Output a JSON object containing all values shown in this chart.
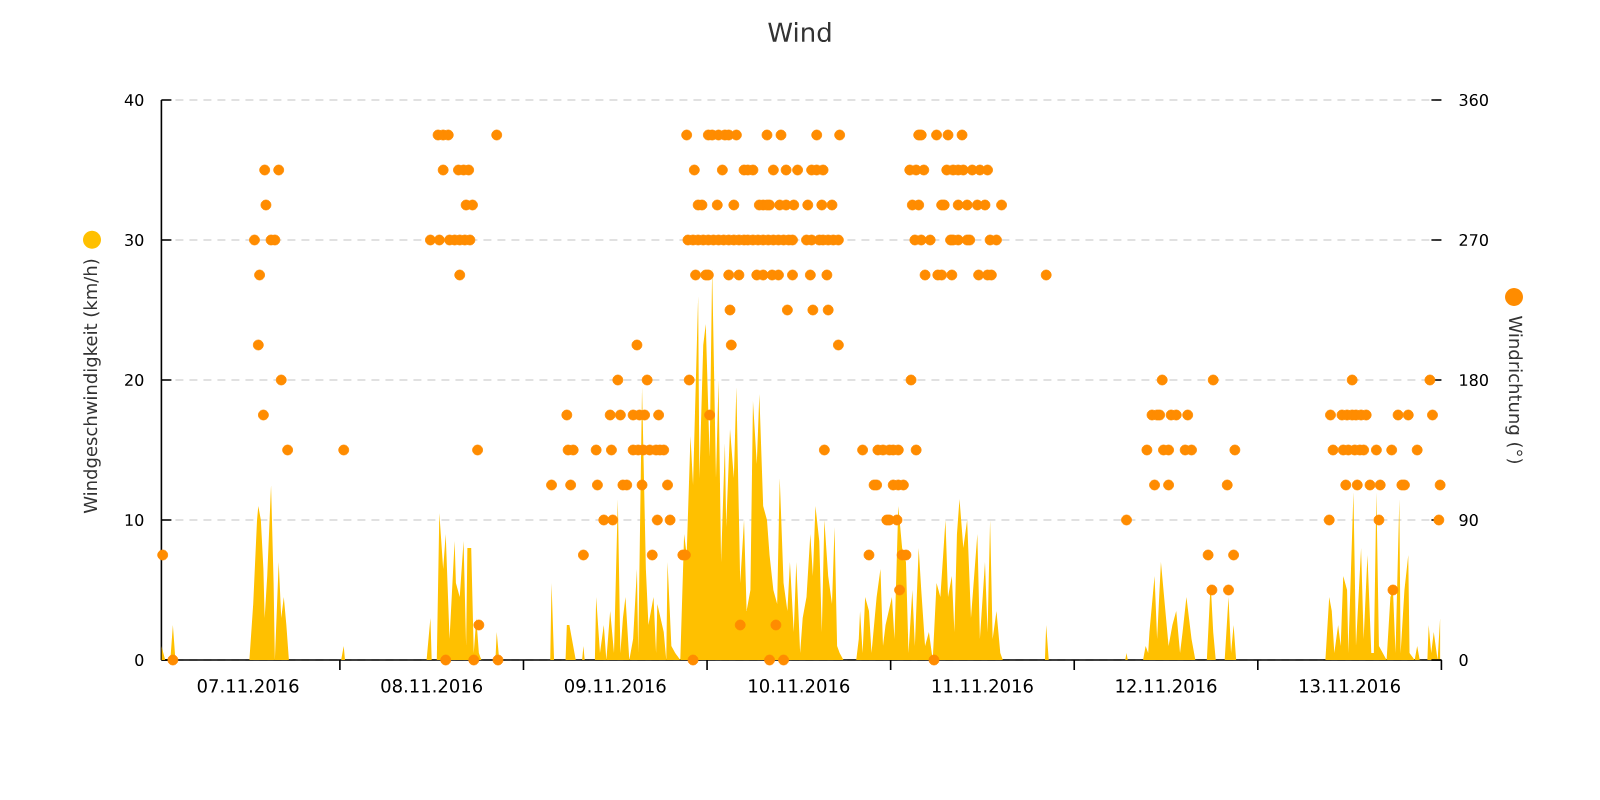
{
  "chart_data": {
    "type": "area",
    "title": "Wind",
    "ylabel": "Windgeschwindigkeit (km/h)",
    "y2label": "Windrichtung (°)",
    "xlim": [
      "2016-11-07T00:40",
      "2016-11-14T00:00"
    ],
    "xticks": [
      {
        "value": "2016-11-07T12:00",
        "label": "07.11.2016"
      },
      {
        "value": "2016-11-08T12:00",
        "label": "08.11.2016"
      },
      {
        "value": "2016-11-09T12:00",
        "label": "09.11.2016"
      },
      {
        "value": "2016-11-10T12:00",
        "label": "10.11.2016"
      },
      {
        "value": "2016-11-11T12:00",
        "label": "11.11.2016"
      },
      {
        "value": "2016-11-12T12:00",
        "label": "12.11.2016"
      },
      {
        "value": "2016-11-13T12:00",
        "label": "13.11.2016"
      },
      {
        "value": "2016-11-08T00:00",
        "label": null
      },
      {
        "value": "2016-11-09T00:00",
        "label": null
      },
      {
        "value": "2016-11-10T00:00",
        "label": null
      },
      {
        "value": "2016-11-11T00:00",
        "label": null
      },
      {
        "value": "2016-11-12T00:00",
        "label": null
      },
      {
        "value": "2016-11-13T00:00",
        "label": null
      },
      {
        "value": "2016-11-14T00:00",
        "label": null
      }
    ],
    "ylim": [
      0,
      40
    ],
    "yticks": [
      0,
      10,
      20,
      30,
      40
    ],
    "y2lim": [
      0,
      360
    ],
    "y2ticks": [
      0,
      90,
      180,
      270,
      360
    ],
    "grid": "y",
    "series": [
      {
        "color": "#ffc000",
        "x": [
          "2016-11-07T00:40",
          "2016-11-07T01:10",
          "2016-11-07T01:50",
          "2016-11-07T02:10",
          "2016-11-07T02:30",
          "2016-11-07T12:10",
          "2016-11-07T12:40",
          "2016-11-07T13:10",
          "2016-11-07T13:20",
          "2016-11-07T13:40",
          "2016-11-07T14:00",
          "2016-11-07T14:10",
          "2016-11-07T14:30",
          "2016-11-07T15:00",
          "2016-11-07T15:20",
          "2016-11-07T15:30",
          "2016-11-07T16:00",
          "2016-11-07T16:20",
          "2016-11-07T16:40",
          "2016-11-07T17:00",
          "2016-11-07T17:20",
          "2016-11-08T00:10",
          "2016-11-08T00:30",
          "2016-11-08T00:40",
          "2016-11-08T11:20",
          "2016-11-08T11:50",
          "2016-11-08T12:00",
          "2016-11-08T12:40",
          "2016-11-08T13:00",
          "2016-11-08T13:30",
          "2016-11-08T13:50",
          "2016-11-08T14:20",
          "2016-11-08T15:00",
          "2016-11-08T15:10",
          "2016-11-08T15:40",
          "2016-11-08T16:10",
          "2016-11-08T16:30",
          "2016-11-08T16:40",
          "2016-11-08T17:10",
          "2016-11-08T17:30",
          "2016-11-08T17:50",
          "2016-11-08T18:10",
          "2016-11-08T18:30",
          "2016-11-08T20:20",
          "2016-11-08T20:30",
          "2016-11-08T20:50",
          "2016-11-09T03:30",
          "2016-11-09T03:40",
          "2016-11-09T04:00",
          "2016-11-09T05:30",
          "2016-11-09T05:40",
          "2016-11-09T06:00",
          "2016-11-09T06:30",
          "2016-11-09T06:50",
          "2016-11-09T07:40",
          "2016-11-09T07:50",
          "2016-11-09T08:00",
          "2016-11-09T09:20",
          "2016-11-09T09:30",
          "2016-11-09T10:00",
          "2016-11-09T10:30",
          "2016-11-09T10:50",
          "2016-11-09T11:20",
          "2016-11-09T11:50",
          "2016-11-09T12:20",
          "2016-11-09T12:40",
          "2016-11-09T13:00",
          "2016-11-09T13:20",
          "2016-11-09T13:50",
          "2016-11-09T14:20",
          "2016-11-09T14:50",
          "2016-11-09T15:00",
          "2016-11-09T15:30",
          "2016-11-09T16:00",
          "2016-11-09T16:20",
          "2016-11-09T17:00",
          "2016-11-09T17:20",
          "2016-11-09T17:30",
          "2016-11-09T18:20",
          "2016-11-09T18:40",
          "2016-11-09T18:50",
          "2016-11-09T19:20",
          "2016-11-09T19:50",
          "2016-11-09T20:30",
          "2016-11-09T21:00",
          "2016-11-09T21:20",
          "2016-11-09T21:50",
          "2016-11-09T22:10",
          "2016-11-09T22:50",
          "2016-11-09T23:00",
          "2016-11-09T23:30",
          "2016-11-09T23:50",
          "2016-11-10T00:20",
          "2016-11-10T00:40",
          "2016-11-10T01:10",
          "2016-11-10T01:30",
          "2016-11-10T01:50",
          "2016-11-10T02:20",
          "2016-11-10T02:30",
          "2016-11-10T03:00",
          "2016-11-10T03:30",
          "2016-11-10T03:50",
          "2016-11-10T04:20",
          "2016-11-10T04:50",
          "2016-11-10T05:10",
          "2016-11-10T05:40",
          "2016-11-10T06:00",
          "2016-11-10T06:30",
          "2016-11-10T06:50",
          "2016-11-10T07:20",
          "2016-11-10T07:50",
          "2016-11-10T08:10",
          "2016-11-10T08:40",
          "2016-11-10T09:10",
          "2016-11-10T09:30",
          "2016-11-10T10:00",
          "2016-11-10T10:30",
          "2016-11-10T10:50",
          "2016-11-10T11:20",
          "2016-11-10T11:40",
          "2016-11-10T12:10",
          "2016-11-10T12:30",
          "2016-11-10T13:00",
          "2016-11-10T13:30",
          "2016-11-10T13:50",
          "2016-11-10T14:10",
          "2016-11-10T14:40",
          "2016-11-10T15:00",
          "2016-11-10T15:20",
          "2016-11-10T15:50",
          "2016-11-10T16:20",
          "2016-11-10T16:40",
          "2016-11-10T17:00",
          "2016-11-10T17:20",
          "2016-11-10T17:50",
          "2016-11-10T19:30",
          "2016-11-10T19:50",
          "2016-11-10T20:00",
          "2016-11-10T20:20",
          "2016-11-10T20:40",
          "2016-11-10T21:10",
          "2016-11-10T21:30",
          "2016-11-10T22:10",
          "2016-11-10T22:40",
          "2016-11-10T23:00",
          "2016-11-10T23:20",
          "2016-11-11T00:10",
          "2016-11-11T00:30",
          "2016-11-11T01:00",
          "2016-11-11T01:30",
          "2016-11-11T02:00",
          "2016-11-11T02:20",
          "2016-11-11T02:50",
          "2016-11-11T03:10",
          "2016-11-11T03:40",
          "2016-11-11T04:00",
          "2016-11-11T04:30",
          "2016-11-11T05:00",
          "2016-11-11T05:30",
          "2016-11-11T06:00",
          "2016-11-11T06:30",
          "2016-11-11T07:10",
          "2016-11-11T07:30",
          "2016-11-11T08:00",
          "2016-11-11T08:20",
          "2016-11-11T08:40",
          "2016-11-11T09:00",
          "2016-11-11T09:30",
          "2016-11-11T10:00",
          "2016-11-11T10:30",
          "2016-11-11T11:20",
          "2016-11-11T11:40",
          "2016-11-11T12:20",
          "2016-11-11T12:40",
          "2016-11-11T13:00",
          "2016-11-11T13:20",
          "2016-11-11T13:50",
          "2016-11-11T14:20",
          "2016-11-11T14:40",
          "2016-11-11T20:10",
          "2016-11-11T20:20",
          "2016-11-11T20:40",
          "2016-11-12T06:40",
          "2016-11-12T06:50",
          "2016-11-12T07:00",
          "2016-11-12T09:00",
          "2016-11-12T09:20",
          "2016-11-12T09:40",
          "2016-11-12T09:50",
          "2016-11-12T10:30",
          "2016-11-12T10:50",
          "2016-11-12T11:20",
          "2016-11-12T11:50",
          "2016-11-12T12:20",
          "2016-11-12T12:50",
          "2016-11-12T13:20",
          "2016-11-12T13:50",
          "2016-11-12T14:10",
          "2016-11-12T14:40",
          "2016-11-12T15:20",
          "2016-11-12T15:50",
          "2016-11-12T17:20",
          "2016-11-12T17:50",
          "2016-11-12T18:10",
          "2016-11-12T18:30",
          "2016-11-12T19:40",
          "2016-11-12T20:10",
          "2016-11-12T20:30",
          "2016-11-12T20:50",
          "2016-11-12T21:10",
          "2016-11-13T08:50",
          "2016-11-13T09:20",
          "2016-11-13T09:40",
          "2016-11-13T10:00",
          "2016-11-13T10:30",
          "2016-11-13T10:50",
          "2016-11-13T11:10",
          "2016-11-13T11:40",
          "2016-11-13T11:50",
          "2016-11-13T12:30",
          "2016-11-13T12:50",
          "2016-11-13T13:30",
          "2016-11-13T13:50",
          "2016-11-13T14:20",
          "2016-11-13T14:50",
          "2016-11-13T15:10",
          "2016-11-13T15:30",
          "2016-11-13T15:50",
          "2016-11-13T16:20",
          "2016-11-13T16:50",
          "2016-11-13T17:20",
          "2016-11-13T17:40",
          "2016-11-13T18:00",
          "2016-11-13T18:30",
          "2016-11-13T18:40",
          "2016-11-13T19:10",
          "2016-11-13T19:40",
          "2016-11-13T19:50",
          "2016-11-13T20:30",
          "2016-11-13T20:50",
          "2016-11-13T21:10",
          "2016-11-13T22:10",
          "2016-11-13T22:20",
          "2016-11-13T22:40",
          "2016-11-13T23:00",
          "2016-11-13T23:30",
          "2016-11-13T23:50"
        ],
        "values": [
          1,
          0,
          0,
          2.5,
          0,
          0,
          4,
          10,
          11,
          10,
          6.5,
          3,
          6,
          12.5,
          5.5,
          0,
          7,
          3,
          4.5,
          2.5,
          0,
          0,
          1,
          0,
          0,
          3,
          0,
          0,
          10.5,
          6.5,
          9,
          1.5,
          8.5,
          5.5,
          4.5,
          8.5,
          1,
          8,
          8,
          0.5,
          3,
          0.5,
          0,
          0,
          2,
          0,
          0,
          5.5,
          0,
          0,
          2.5,
          2.5,
          1,
          0,
          0,
          1,
          0,
          0,
          4.5,
          0.5,
          2.5,
          0,
          3.5,
          0.5,
          11.5,
          0.5,
          3,
          4.5,
          0,
          1.5,
          6.5,
          0.5,
          19.5,
          6.5,
          2.5,
          4.5,
          0.5,
          4,
          2,
          0,
          7,
          1,
          0.5,
          0,
          9,
          7.5,
          16,
          12.5,
          26,
          13,
          22.5,
          24,
          14.5,
          28,
          13,
          20,
          7,
          15.5,
          9.5,
          16.5,
          13,
          19.5,
          5.5,
          10,
          3.5,
          5,
          18.5,
          14,
          19,
          11,
          10,
          7.5,
          5,
          4,
          13,
          5.5,
          3.5,
          7,
          2,
          7,
          0.5,
          3,
          4.5,
          9,
          6,
          11,
          8.5,
          2,
          10,
          6,
          4,
          9.5,
          1,
          0.5,
          0,
          0,
          1.5,
          3.5,
          0.5,
          4.5,
          3.5,
          0.5,
          4.5,
          6.5,
          1,
          2.5,
          4.5,
          1.5,
          11,
          8,
          7,
          0.5,
          5,
          1,
          8,
          5,
          1,
          2,
          0,
          5.5,
          4.5,
          10,
          4.5,
          6,
          2,
          9,
          11.5,
          8,
          10,
          3,
          9,
          1.5,
          7,
          2,
          10,
          1.5,
          3.5,
          0.5,
          0,
          0,
          2.5,
          0,
          0,
          0.5,
          0,
          0,
          1,
          0.5,
          2,
          6,
          1.5,
          7,
          4,
          1,
          2.5,
          3.5,
          0.5,
          2,
          4.5,
          1.5,
          0,
          0,
          5.5,
          2,
          0,
          0,
          4.5,
          0.5,
          2.5,
          0,
          0,
          4.5,
          3.5,
          0.5,
          2.5,
          1,
          6,
          5,
          0.5,
          12,
          1,
          8,
          1.5,
          7.5,
          0.5,
          0.5,
          12,
          1,
          0.5,
          0,
          4.5,
          5,
          0.5,
          11.5,
          0.5,
          5,
          7.5,
          0.5,
          0,
          1,
          0,
          0,
          2.5,
          0.5,
          2,
          0,
          3
        ]
      },
      {
        "type": "scatter",
        "axis": "y2",
        "marker": "circle",
        "color": "#ff8c00",
        "x": [
          "2016-11-07T00:50",
          "2016-11-07T02:10",
          "2016-11-07T12:50",
          "2016-11-07T13:20",
          "2016-11-07T13:30",
          "2016-11-07T14:00",
          "2016-11-07T14:10",
          "2016-11-07T14:20",
          "2016-11-07T15:00",
          "2016-11-07T15:30",
          "2016-11-07T16:00",
          "2016-11-07T16:20",
          "2016-11-07T17:10",
          "2016-11-08T00:30",
          "2016-11-08T11:50",
          "2016-11-08T12:50",
          "2016-11-08T13:00",
          "2016-11-08T13:30",
          "2016-11-08T13:30",
          "2016-11-08T13:50",
          "2016-11-08T14:10",
          "2016-11-08T14:20",
          "2016-11-08T15:00",
          "2016-11-08T15:30",
          "2016-11-08T15:40",
          "2016-11-08T15:40",
          "2016-11-08T16:10",
          "2016-11-08T16:20",
          "2016-11-08T16:30",
          "2016-11-08T16:50",
          "2016-11-08T17:00",
          "2016-11-08T17:20",
          "2016-11-08T17:30",
          "2016-11-08T18:00",
          "2016-11-08T18:10",
          "2016-11-08T20:30",
          "2016-11-08T20:40",
          "2016-11-09T03:40",
          "2016-11-09T05:40",
          "2016-11-09T05:50",
          "2016-11-09T06:10",
          "2016-11-09T06:30",
          "2016-11-09T07:50",
          "2016-11-09T09:30",
          "2016-11-09T09:40",
          "2016-11-09T10:30",
          "2016-11-09T11:20",
          "2016-11-09T11:30",
          "2016-11-09T11:40",
          "2016-11-09T12:20",
          "2016-11-09T12:40",
          "2016-11-09T13:00",
          "2016-11-09T13:30",
          "2016-11-09T14:20",
          "2016-11-09T14:20",
          "2016-11-09T14:50",
          "2016-11-09T15:00",
          "2016-11-09T15:10",
          "2016-11-09T15:30",
          "2016-11-09T15:40",
          "2016-11-09T15:50",
          "2016-11-09T16:10",
          "2016-11-09T16:30",
          "2016-11-09T16:50",
          "2016-11-09T17:20",
          "2016-11-09T17:30",
          "2016-11-09T17:40",
          "2016-11-09T17:50",
          "2016-11-09T18:20",
          "2016-11-09T18:50",
          "2016-11-09T19:10",
          "2016-11-09T20:50",
          "2016-11-09T21:10",
          "2016-11-09T21:20",
          "2016-11-09T21:30",
          "2016-11-09T21:40",
          "2016-11-09T22:10",
          "2016-11-09T22:10",
          "2016-11-09T22:20",
          "2016-11-09T22:30",
          "2016-11-09T22:50",
          "2016-11-09T22:50",
          "2016-11-09T23:20",
          "2016-11-09T23:30",
          "2016-11-09T23:50",
          "2016-11-10T00:10",
          "2016-11-10T00:10",
          "2016-11-10T00:10",
          "2016-11-10T00:20",
          "2016-11-10T00:40",
          "2016-11-10T00:50",
          "2016-11-10T01:20",
          "2016-11-10T01:30",
          "2016-11-10T01:30",
          "2016-11-10T02:00",
          "2016-11-10T02:10",
          "2016-11-10T02:20",
          "2016-11-10T02:50",
          "2016-11-10T02:50",
          "2016-11-10T02:50",
          "2016-11-10T03:00",
          "2016-11-10T03:10",
          "2016-11-10T03:30",
          "2016-11-10T03:30",
          "2016-11-10T03:50",
          "2016-11-10T04:10",
          "2016-11-10T04:10",
          "2016-11-10T04:20",
          "2016-11-10T04:50",
          "2016-11-10T04:50",
          "2016-11-10T05:20",
          "2016-11-10T05:20",
          "2016-11-10T06:00",
          "2016-11-10T06:00",
          "2016-11-10T06:30",
          "2016-11-10T06:40",
          "2016-11-10T06:50",
          "2016-11-10T07:20",
          "2016-11-10T07:20",
          "2016-11-10T07:20",
          "2016-11-10T07:50",
          "2016-11-10T07:50",
          "2016-11-10T08:00",
          "2016-11-10T08:10",
          "2016-11-10T08:10",
          "2016-11-10T08:30",
          "2016-11-10T08:40",
          "2016-11-10T08:40",
          "2016-11-10T09:00",
          "2016-11-10T09:20",
          "2016-11-10T09:20",
          "2016-11-10T09:30",
          "2016-11-10T09:40",
          "2016-11-10T10:00",
          "2016-11-10T10:00",
          "2016-11-10T10:20",
          "2016-11-10T10:20",
          "2016-11-10T10:30",
          "2016-11-10T10:40",
          "2016-11-10T11:10",
          "2016-11-10T11:10",
          "2016-11-10T11:20",
          "2016-11-10T11:50",
          "2016-11-10T13:00",
          "2016-11-10T13:10",
          "2016-11-10T13:30",
          "2016-11-10T13:40",
          "2016-11-10T13:40",
          "2016-11-10T13:50",
          "2016-11-10T14:20",
          "2016-11-10T14:20",
          "2016-11-10T14:40",
          "2016-11-10T15:00",
          "2016-11-10T15:10",
          "2016-11-10T15:10",
          "2016-11-10T15:20",
          "2016-11-10T15:40",
          "2016-11-10T15:50",
          "2016-11-10T15:50",
          "2016-11-10T16:20",
          "2016-11-10T16:30",
          "2016-11-10T17:10",
          "2016-11-10T17:10",
          "2016-11-10T17:20",
          "2016-11-10T20:20",
          "2016-11-10T21:10",
          "2016-11-10T21:50",
          "2016-11-10T22:10",
          "2016-11-10T22:20",
          "2016-11-10T23:00",
          "2016-11-10T23:30",
          "2016-11-10T23:50",
          "2016-11-10T23:50",
          "2016-11-11T00:20",
          "2016-11-11T00:20",
          "2016-11-11T00:50",
          "2016-11-11T01:00",
          "2016-11-11T01:00",
          "2016-11-11T01:10",
          "2016-11-11T01:30",
          "2016-11-11T01:40",
          "2016-11-11T02:00",
          "2016-11-11T02:30",
          "2016-11-11T02:40",
          "2016-11-11T02:50",
          "2016-11-11T03:10",
          "2016-11-11T03:20",
          "2016-11-11T03:20",
          "2016-11-11T03:40",
          "2016-11-11T03:40",
          "2016-11-11T04:00",
          "2016-11-11T04:00",
          "2016-11-11T04:20",
          "2016-11-11T04:30",
          "2016-11-11T05:10",
          "2016-11-11T05:40",
          "2016-11-11T06:00",
          "2016-11-11T06:10",
          "2016-11-11T06:40",
          "2016-11-11T06:40",
          "2016-11-11T07:00",
          "2016-11-11T07:20",
          "2016-11-11T07:30",
          "2016-11-11T07:50",
          "2016-11-11T08:00",
          "2016-11-11T08:10",
          "2016-11-11T08:10",
          "2016-11-11T08:50",
          "2016-11-11T08:50",
          "2016-11-11T08:50",
          "2016-11-11T09:20",
          "2016-11-11T09:30",
          "2016-11-11T10:00",
          "2016-11-11T10:00",
          "2016-11-11T10:20",
          "2016-11-11T10:40",
          "2016-11-11T11:20",
          "2016-11-11T11:30",
          "2016-11-11T11:40",
          "2016-11-11T12:20",
          "2016-11-11T12:40",
          "2016-11-11T12:40",
          "2016-11-11T13:00",
          "2016-11-11T13:10",
          "2016-11-11T13:50",
          "2016-11-11T14:30",
          "2016-11-11T20:20",
          "2016-11-12T06:50",
          "2016-11-12T09:30",
          "2016-11-12T10:10",
          "2016-11-12T10:30",
          "2016-11-12T10:50",
          "2016-11-12T11:10",
          "2016-11-12T11:30",
          "2016-11-12T11:40",
          "2016-11-12T12:20",
          "2016-11-12T12:20",
          "2016-11-12T12:40",
          "2016-11-12T13:20",
          "2016-11-12T14:30",
          "2016-11-12T14:50",
          "2016-11-12T15:20",
          "2016-11-12T17:30",
          "2016-11-12T18:00",
          "2016-11-12T18:10",
          "2016-11-12T20:00",
          "2016-11-12T20:10",
          "2016-11-12T20:50",
          "2016-11-12T21:00",
          "2016-11-13T09:20",
          "2016-11-13T09:30",
          "2016-11-13T09:50",
          "2016-11-13T11:00",
          "2016-11-13T11:10",
          "2016-11-13T11:30",
          "2016-11-13T11:40",
          "2016-11-13T11:50",
          "2016-11-13T12:20",
          "2016-11-13T12:20",
          "2016-11-13T12:40",
          "2016-11-13T12:50",
          "2016-11-13T13:00",
          "2016-11-13T13:20",
          "2016-11-13T13:30",
          "2016-11-13T13:50",
          "2016-11-13T14:10",
          "2016-11-13T14:40",
          "2016-11-13T15:30",
          "2016-11-13T15:50",
          "2016-11-13T16:00",
          "2016-11-13T17:30",
          "2016-11-13T17:40",
          "2016-11-13T18:20",
          "2016-11-13T18:50",
          "2016-11-13T19:10",
          "2016-11-13T19:40",
          "2016-11-13T20:50",
          "2016-11-13T22:30",
          "2016-11-13T22:50",
          "2016-11-13T23:40",
          "2016-11-13T23:50"
        ],
        "values": [
          67.5,
          0,
          270,
          202.5,
          247.5,
          157.5,
          315,
          292.5,
          270,
          270,
          315,
          180,
          135,
          135,
          270,
          337.5,
          270,
          315,
          337.5,
          0,
          337.5,
          270,
          270,
          315,
          247.5,
          270,
          315,
          270,
          292.5,
          315,
          270,
          292.5,
          0,
          135,
          22.5,
          337.5,
          0,
          112.5,
          157.5,
          135,
          112.5,
          135,
          67.5,
          135,
          112.5,
          90,
          157.5,
          135,
          90,
          180,
          157.5,
          112.5,
          112.5,
          157.5,
          135,
          202.5,
          135,
          157.5,
          112.5,
          135,
          157.5,
          180,
          135,
          67.5,
          135,
          90,
          157.5,
          135,
          135,
          112.5,
          90,
          67.5,
          67.5,
          337.5,
          270,
          180,
          0,
          270,
          315,
          247.5,
          292.5,
          270,
          292.5,
          270,
          247.5,
          337.5,
          270,
          247.5,
          157.5,
          337.5,
          270,
          292.5,
          337.5,
          270,
          315,
          270,
          337.5,
          337.5,
          270,
          247.5,
          225,
          202.5,
          292.5,
          270,
          337.5,
          247.5,
          270,
          22.5,
          315,
          270,
          315,
          270,
          315,
          270,
          247.5,
          270,
          292.5,
          247.5,
          292.5,
          270,
          337.5,
          292.5,
          270,
          292.5,
          0,
          247.5,
          315,
          270,
          22.5,
          247.5,
          270,
          292.5,
          337.5,
          0,
          270,
          315,
          292.5,
          225,
          270,
          247.5,
          270,
          292.5,
          315,
          270,
          292.5,
          247.5,
          315,
          270,
          225,
          337.5,
          315,
          270,
          292.5,
          315,
          270,
          135,
          247.5,
          225,
          270,
          292.5,
          270,
          202.5,
          270,
          337.5,
          135,
          67.5,
          112.5,
          112.5,
          135,
          135,
          90,
          90,
          135,
          135,
          112.5,
          90,
          112.5,
          135,
          45,
          67.5,
          112.5,
          67.5,
          315,
          180,
          292.5,
          270,
          315,
          135,
          337.5,
          292.5,
          270,
          337.5,
          315,
          247.5,
          270,
          0,
          337.5,
          247.5,
          292.5,
          247.5,
          292.5,
          315,
          337.5,
          270,
          247.5,
          315,
          270,
          315,
          292.5,
          270,
          337.5,
          315,
          292.5,
          270,
          270,
          315,
          292.5,
          247.5,
          315,
          292.5,
          315,
          247.5,
          270,
          247.5,
          270,
          292.5,
          247.5,
          90,
          135,
          157.5,
          112.5,
          157.5,
          157.5,
          180,
          135,
          135,
          112.5,
          157.5,
          157.5,
          135,
          157.5,
          135,
          67.5,
          45,
          180,
          112.5,
          45,
          67.5,
          135,
          90,
          157.5,
          135,
          157.5,
          135,
          112.5,
          157.5,
          135,
          157.5,
          180,
          135,
          157.5,
          112.5,
          135,
          157.5,
          135,
          157.5,
          112.5,
          135,
          90,
          112.5,
          135,
          45,
          157.5,
          112.5,
          112.5,
          157.5,
          135,
          180,
          157.5,
          90,
          112.5
        ]
      }
    ]
  }
}
